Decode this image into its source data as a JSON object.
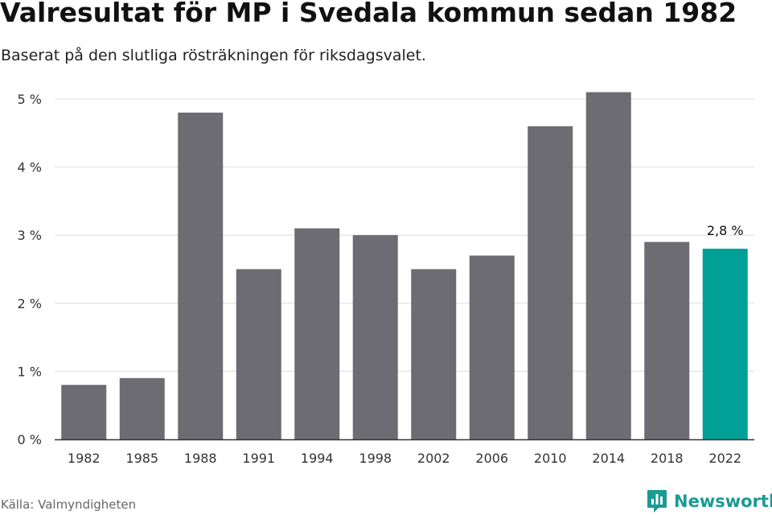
{
  "header": {
    "title": "Valresultat för MP i Svedala kommun sedan 1982",
    "subtitle": "Baserat på den slutliga rösträkningen för riksdagsvalet."
  },
  "footer": {
    "source": "Källa: Valmyndigheten",
    "brand": "Newsworthy"
  },
  "colors": {
    "bar": "#6d6c72",
    "highlight": "#00a096",
    "grid": "#dddddd",
    "axis": "#333333",
    "brand": "#1a9b93"
  },
  "chart_data": {
    "type": "bar",
    "categories": [
      "1982",
      "1985",
      "1988",
      "1991",
      "1994",
      "1998",
      "2002",
      "2006",
      "2010",
      "2014",
      "2018",
      "2022"
    ],
    "values": [
      0.8,
      0.9,
      4.8,
      2.5,
      3.1,
      3.0,
      2.5,
      2.7,
      4.6,
      5.1,
      2.9,
      2.8
    ],
    "highlight_index": 11,
    "data_labels": [
      {
        "index": 11,
        "text": "2,8 %"
      }
    ],
    "yticks": [
      0,
      1,
      2,
      3,
      4,
      5
    ],
    "ytick_labels": [
      "0 %",
      "1 %",
      "2 %",
      "3 %",
      "4 %",
      "5 %"
    ],
    "ylim": [
      0,
      5.4
    ],
    "grid": true,
    "legend": "none",
    "xlabel": "",
    "ylabel": ""
  }
}
